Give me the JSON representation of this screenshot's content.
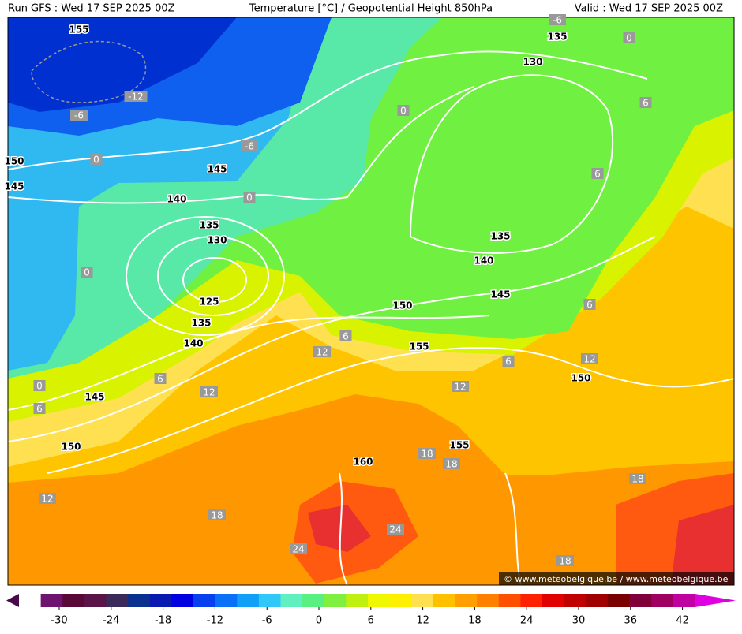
{
  "header": {
    "left": "Run GFS : Wed 17 SEP 2025 00Z",
    "center": "Temperature [°C] / Geopotential Height 850hPa",
    "right": "Valid : Wed 17 SEP 2025 00Z"
  },
  "height_labels": [
    "155",
    "135",
    "130",
    "150",
    "145",
    "145",
    "140",
    "135",
    "130",
    "125",
    "135",
    "140",
    "145",
    "150",
    "135",
    "140",
    "145",
    "150",
    "155",
    "150",
    "155",
    "160"
  ],
  "temperature_labels": [
    "-6",
    "0",
    "-12",
    "-6",
    "-6",
    "0",
    "0",
    "0",
    "0",
    "6",
    "6",
    "6",
    "0",
    "6",
    "6",
    "6",
    "12",
    "12",
    "12",
    "6",
    "12",
    "18",
    "18",
    "18",
    "12",
    "18",
    "24",
    "24",
    "18"
  ],
  "credit": "© www.meteobelgique.be / www.meteobelgique.be",
  "colorbar": {
    "colors": [
      "#4a0a4a",
      "#6e1470",
      "#5a0838",
      "#5a1448",
      "#3a2a5a",
      "#0a3090",
      "#0a1ab0",
      "#0000e0",
      "#0840f0",
      "#0a70f8",
      "#10a0f8",
      "#30c8f8",
      "#60f0c0",
      "#58f080",
      "#80f040",
      "#c0f010",
      "#f0f800",
      "#fff000",
      "#ffe050",
      "#ffc000",
      "#ffa000",
      "#ff8000",
      "#ff5000",
      "#ff2000",
      "#e00000",
      "#c00000",
      "#a00000",
      "#7a0000",
      "#80003a",
      "#a00060",
      "#c000a0",
      "#e000e0"
    ],
    "ticks": [
      -30,
      -24,
      -18,
      -12,
      -6,
      0,
      6,
      12,
      18,
      24,
      30,
      36,
      42
    ]
  }
}
